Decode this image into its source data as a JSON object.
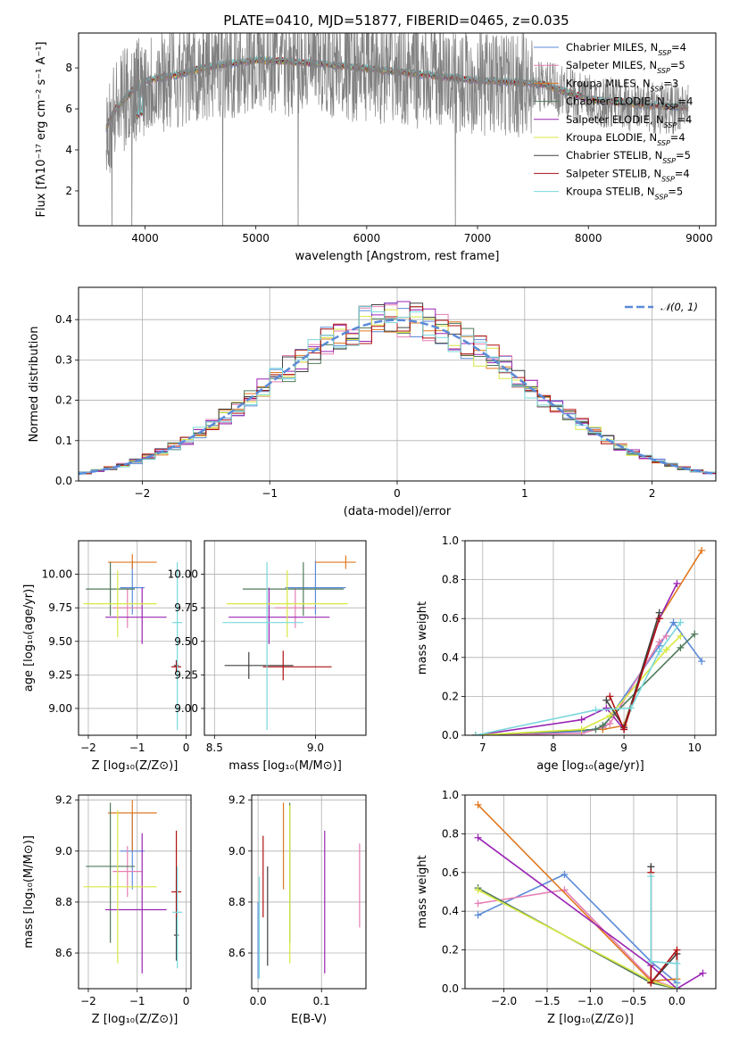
{
  "colors": {
    "Chabrier MILES": "#5b8ad8",
    "Salpeter MILES": "#e47fb4",
    "Kroupa MILES": "#e07820",
    "Chabrier ELODIE": "#4f7a5a",
    "Salpeter ELODIE": "#9a24b4",
    "Kroupa ELODIE": "#d8e840",
    "Chabrier STELIB": "#404040",
    "Salpeter STELIB": "#b01010",
    "Kroupa STELIB": "#7ad8dc",
    "gaussian": "#5b8ad8"
  },
  "chart_data": [
    {
      "id": "spectrum",
      "type": "line",
      "title": "PLATE=0410, MJD=51877, FIBERID=0465, z=0.035",
      "xlabel": "wavelength [Angstrom, rest frame]",
      "ylabel": "Flux [fλ10⁻¹⁷ erg cm⁻² s⁻¹ A⁻¹]",
      "xlim": [
        3400,
        9150
      ],
      "ylim": [
        0.3,
        9.7
      ],
      "xticks": [
        4000,
        5000,
        6000,
        7000,
        8000,
        9000
      ],
      "yticks": [
        2,
        4,
        6,
        8
      ],
      "legend_position": "top-right",
      "legend": [
        {
          "model": "Chabrier MILES",
          "label": "Chabrier MILES, N",
          "sub": "SSP",
          "suffix": "=4"
        },
        {
          "model": "Salpeter MILES",
          "label": "Salpeter MILES, N",
          "sub": "SSP",
          "suffix": "=5"
        },
        {
          "model": "Kroupa MILES",
          "label": "Kroupa MILES, N",
          "sub": "SSP",
          "suffix": "=3"
        },
        {
          "model": "Chabrier ELODIE",
          "label": "Chabrier ELODIE, N",
          "sub": "SSP",
          "suffix": "=4"
        },
        {
          "model": "Salpeter ELODIE",
          "label": "Salpeter ELODIE, N",
          "sub": "SSP",
          "suffix": "=4"
        },
        {
          "model": "Kroupa ELODIE",
          "label": "Kroupa ELODIE, N",
          "sub": "SSP",
          "suffix": "=4"
        },
        {
          "model": "Chabrier STELIB",
          "label": "Chabrier STELIB, N",
          "sub": "SSP",
          "suffix": "=5"
        },
        {
          "model": "Salpeter STELIB",
          "label": "Salpeter STELIB, N",
          "sub": "SSP",
          "suffix": "=4"
        },
        {
          "model": "Kroupa STELIB",
          "label": "Kroupa STELIB, N",
          "sub": "SSP",
          "suffix": "=5"
        }
      ],
      "data_color": "#808080",
      "continuum": [
        [
          3650,
          5.0
        ],
        [
          3720,
          5.8
        ],
        [
          3800,
          6.3
        ],
        [
          3950,
          7.2
        ],
        [
          4100,
          7.4
        ],
        [
          4300,
          7.6
        ],
        [
          4600,
          8.0
        ],
        [
          5000,
          8.3
        ],
        [
          5400,
          8.2
        ],
        [
          6000,
          7.9
        ],
        [
          6500,
          7.6
        ],
        [
          7000,
          7.3
        ],
        [
          7400,
          7.2
        ],
        [
          7600,
          7.1
        ],
        [
          8000,
          6.4
        ],
        [
          8500,
          6.1
        ],
        [
          8900,
          6.0
        ]
      ]
    },
    {
      "id": "residuals",
      "type": "histogram",
      "xlabel": "(data-model)/error",
      "ylabel": "Normed distribution",
      "xlim": [
        -2.5,
        2.5
      ],
      "ylim": [
        0,
        0.48
      ],
      "xticks": [
        -2,
        -1,
        0,
        1,
        2
      ],
      "yticks": [
        0.0,
        0.1,
        0.2,
        0.3,
        0.4
      ],
      "legend": "𝒩(0, 1)",
      "legend_position": "top-right",
      "gaussian": {
        "mean": 0,
        "sigma": 1
      },
      "bin_width": 0.1
    },
    {
      "id": "age_vs_Z",
      "type": "errorbar",
      "xlabel": "Z [log₁₀(Z/Z⊙)]",
      "ylabel": "age  [log₁₀(age/yr)]",
      "xlim": [
        -2.2,
        0.1
      ],
      "ylim": [
        8.8,
        10.25
      ],
      "xticks": [
        -2,
        -1,
        0
      ],
      "yticks": [
        9.0,
        9.25,
        9.5,
        9.75,
        10.0
      ],
      "points": [
        {
          "model": "Chabrier MILES",
          "x": -1.1,
          "xerr": [
            0.25,
            0.25
          ],
          "y": 9.9,
          "yerr": [
            0.2,
            0.2
          ]
        },
        {
          "model": "Salpeter MILES",
          "x": -1.2,
          "xerr": [
            0.3,
            0.3
          ],
          "y": 9.75,
          "yerr": [
            0.15,
            0.15
          ]
        },
        {
          "model": "Kroupa MILES",
          "x": -1.1,
          "xerr": [
            0.5,
            0.5
          ],
          "y": 10.09,
          "yerr": [
            0.05,
            0.06
          ]
        },
        {
          "model": "Chabrier ELODIE",
          "x": -1.55,
          "xerr": [
            0.5,
            0.5
          ],
          "y": 9.89,
          "yerr": [
            0.2,
            0.2
          ]
        },
        {
          "model": "Salpeter ELODIE",
          "x": -0.9,
          "xerr": [
            0.75,
            0.5
          ],
          "y": 9.68,
          "yerr": [
            0.2,
            0.22
          ]
        },
        {
          "model": "Kroupa ELODIE",
          "x": -1.4,
          "xerr": [
            0.7,
            0.8
          ],
          "y": 9.78,
          "yerr": [
            0.25,
            0.25
          ]
        },
        {
          "model": "Chabrier STELIB",
          "x": -0.2,
          "xerr": [
            0.05,
            0.05
          ],
          "y": 9.32,
          "yerr": [
            0.04,
            0.04
          ]
        },
        {
          "model": "Salpeter STELIB",
          "x": -0.2,
          "xerr": [
            0.1,
            0.1
          ],
          "y": 9.31,
          "yerr": [
            0.04,
            0.04
          ]
        },
        {
          "model": "Kroupa STELIB",
          "x": -0.18,
          "xerr": [
            0.1,
            0.1
          ],
          "y": 9.64,
          "yerr": [
            0.8,
            0.45
          ]
        }
      ]
    },
    {
      "id": "age_vs_mass",
      "type": "errorbar",
      "xlabel": "mass [log₁₀(M/M⊙)]",
      "ylabel": "",
      "xlim": [
        8.45,
        9.25
      ],
      "ylim": [
        8.8,
        10.25
      ],
      "xticks": [
        8.5,
        9.0
      ],
      "yticks": [
        9.0,
        9.25,
        9.5,
        9.75,
        10.0
      ],
      "points": [
        {
          "model": "Chabrier MILES",
          "x": 9.0,
          "xerr": [
            0.15,
            0.15
          ],
          "y": 9.9,
          "yerr": [
            0.2,
            0.2
          ]
        },
        {
          "model": "Salpeter MILES",
          "x": 8.9,
          "xerr": [
            0.1,
            0.1
          ],
          "y": 9.75,
          "yerr": [
            0.15,
            0.15
          ]
        },
        {
          "model": "Kroupa MILES",
          "x": 9.15,
          "xerr": [
            0.15,
            0.05
          ],
          "y": 10.09,
          "yerr": [
            0.05,
            0.05
          ]
        },
        {
          "model": "Chabrier ELODIE",
          "x": 8.94,
          "xerr": [
            0.3,
            0.2
          ],
          "y": 9.89,
          "yerr": [
            0.2,
            0.2
          ]
        },
        {
          "model": "Salpeter ELODIE",
          "x": 8.77,
          "xerr": [
            0.2,
            0.3
          ],
          "y": 9.68,
          "yerr": [
            0.2,
            0.22
          ]
        },
        {
          "model": "Kroupa ELODIE",
          "x": 8.86,
          "xerr": [
            0.3,
            0.3
          ],
          "y": 9.78,
          "yerr": [
            0.25,
            0.25
          ]
        },
        {
          "model": "Chabrier STELIB",
          "x": 8.67,
          "xerr": [
            0.12,
            0.22
          ],
          "y": 9.32,
          "yerr": [
            0.1,
            0.1
          ]
        },
        {
          "model": "Salpeter STELIB",
          "x": 8.84,
          "xerr": [
            0.1,
            0.24
          ],
          "y": 9.31,
          "yerr": [
            0.1,
            0.12
          ]
        },
        {
          "model": "Kroupa STELIB",
          "x": 8.76,
          "xerr": [
            0.22,
            0.18
          ],
          "y": 9.64,
          "yerr": [
            0.8,
            0.45
          ]
        }
      ]
    },
    {
      "id": "weight_vs_age",
      "type": "line",
      "xlabel": "age  [log₁₀(age/yr)]",
      "ylabel": "mass weight",
      "xlim": [
        6.75,
        10.3
      ],
      "ylim": [
        0,
        1.0
      ],
      "xticks": [
        7,
        8,
        9,
        10
      ],
      "yticks": [
        0.0,
        0.2,
        0.4,
        0.6,
        0.8,
        1.0
      ],
      "series": [
        {
          "model": "Chabrier MILES",
          "x": [
            6.9,
            8.4,
            8.7,
            9.5,
            9.7,
            10.1
          ],
          "y": [
            0.0,
            0.02,
            0.04,
            0.46,
            0.58,
            0.38
          ]
        },
        {
          "model": "Salpeter MILES",
          "x": [
            6.9,
            8.4,
            8.7,
            8.8,
            9.5,
            9.6
          ],
          "y": [
            0.0,
            0.01,
            0.04,
            0.06,
            0.48,
            0.51
          ]
        },
        {
          "model": "Kroupa MILES",
          "x": [
            8.7,
            9.0,
            9.5,
            10.1
          ],
          "y": [
            0.03,
            0.05,
            0.6,
            0.95
          ]
        },
        {
          "model": "Chabrier ELODIE",
          "x": [
            6.9,
            8.6,
            8.7,
            9.8,
            10.0
          ],
          "y": [
            0.0,
            0.03,
            0.05,
            0.45,
            0.52
          ]
        },
        {
          "model": "Salpeter ELODIE",
          "x": [
            6.9,
            8.4,
            8.75,
            9.0,
            9.5,
            9.75
          ],
          "y": [
            0.0,
            0.08,
            0.14,
            0.03,
            0.6,
            0.78
          ]
        },
        {
          "model": "Kroupa ELODIE",
          "x": [
            6.9,
            8.4,
            8.8,
            9.6,
            9.8
          ],
          "y": [
            0.0,
            0.03,
            0.1,
            0.44,
            0.51
          ]
        },
        {
          "model": "Chabrier STELIB",
          "x": [
            8.75,
            9.0,
            9.5
          ],
          "y": [
            0.18,
            0.04,
            0.63
          ]
        },
        {
          "model": "Salpeter STELIB",
          "x": [
            8.8,
            9.0,
            9.5
          ],
          "y": [
            0.2,
            0.03,
            0.6
          ]
        },
        {
          "model": "Kroupa STELIB",
          "x": [
            6.9,
            8.6,
            9.1,
            9.5,
            9.8
          ],
          "y": [
            0.0,
            0.13,
            0.14,
            0.43,
            0.58
          ]
        }
      ]
    },
    {
      "id": "mass_vs_Z",
      "type": "errorbar",
      "xlabel": "Z [log₁₀(Z/Z⊙)]",
      "ylabel": "mass [log₁₀(M/M⊙)]",
      "xlim": [
        -2.2,
        0.1
      ],
      "ylim": [
        8.46,
        9.22
      ],
      "xticks": [
        -2,
        -1,
        0
      ],
      "yticks": [
        8.6,
        8.8,
        9.0,
        9.2
      ],
      "points": [
        {
          "model": "Chabrier MILES",
          "x": -1.1,
          "xerr": [
            0.25,
            0.25
          ],
          "y": 9.0,
          "yerr": [
            0.15,
            0.15
          ]
        },
        {
          "model": "Salpeter MILES",
          "x": -1.2,
          "xerr": [
            0.3,
            0.3
          ],
          "y": 8.92,
          "yerr": [
            0.1,
            0.1
          ]
        },
        {
          "model": "Kroupa MILES",
          "x": -1.1,
          "xerr": [
            0.5,
            0.5
          ],
          "y": 9.15,
          "yerr": [
            0.15,
            0.05
          ]
        },
        {
          "model": "Chabrier ELODIE",
          "x": -1.55,
          "xerr": [
            0.5,
            0.5
          ],
          "y": 8.94,
          "yerr": [
            0.3,
            0.25
          ]
        },
        {
          "model": "Salpeter ELODIE",
          "x": -0.9,
          "xerr": [
            0.75,
            0.5
          ],
          "y": 8.77,
          "yerr": [
            0.25,
            0.3
          ]
        },
        {
          "model": "Kroupa ELODIE",
          "x": -1.4,
          "xerr": [
            0.7,
            0.8
          ],
          "y": 8.86,
          "yerr": [
            0.3,
            0.3
          ]
        },
        {
          "model": "Chabrier STELIB",
          "x": -0.2,
          "xerr": [
            0.05,
            0.05
          ],
          "y": 8.67,
          "yerr": [
            0.1,
            0.22
          ]
        },
        {
          "model": "Salpeter STELIB",
          "x": -0.2,
          "xerr": [
            0.1,
            0.1
          ],
          "y": 8.84,
          "yerr": [
            0.1,
            0.24
          ]
        },
        {
          "model": "Kroupa STELIB",
          "x": -0.18,
          "xerr": [
            0.1,
            0.1
          ],
          "y": 8.76,
          "yerr": [
            0.22,
            0.18
          ]
        }
      ]
    },
    {
      "id": "mass_vs_ebv",
      "type": "errorbar",
      "xlabel": "E(B-V)",
      "ylabel": "",
      "xlim": [
        -0.01,
        0.17
      ],
      "ylim": [
        8.46,
        9.22
      ],
      "xticks": [
        0.0,
        0.1
      ],
      "yticks": [
        8.6,
        8.8,
        9.0,
        9.2
      ],
      "points": [
        {
          "model": "Chabrier MILES",
          "x": 0.0,
          "y": 8.65,
          "yerr": [
            0.15,
            0.15
          ]
        },
        {
          "model": "Salpeter MILES",
          "x": 0.16,
          "y": 8.87,
          "yerr": [
            0.17,
            0.16
          ]
        },
        {
          "model": "Kroupa MILES",
          "x": 0.04,
          "y": 9.02,
          "yerr": [
            0.17,
            0.17
          ]
        },
        {
          "model": "Chabrier ELODIE",
          "x": 0.05,
          "y": 8.94,
          "yerr": [
            0.3,
            0.25
          ]
        },
        {
          "model": "Salpeter ELODIE",
          "x": 0.105,
          "y": 8.8,
          "yerr": [
            0.28,
            0.28
          ]
        },
        {
          "model": "Kroupa ELODIE",
          "x": 0.05,
          "y": 8.86,
          "yerr": [
            0.3,
            0.32
          ]
        },
        {
          "model": "Chabrier STELIB",
          "x": 0.015,
          "y": 8.75,
          "yerr": [
            0.2,
            0.19
          ]
        },
        {
          "model": "Salpeter STELIB",
          "x": 0.008,
          "y": 8.9,
          "yerr": [
            0.16,
            0.16
          ]
        },
        {
          "model": "Kroupa STELIB",
          "x": 0.002,
          "y": 8.7,
          "yerr": [
            0.2,
            0.2
          ]
        }
      ]
    },
    {
      "id": "weight_vs_Z",
      "type": "line",
      "xlabel": "Z [log₁₀(Z/Z⊙)]",
      "ylabel": "mass weight",
      "xlim": [
        -2.45,
        0.45
      ],
      "ylim": [
        0,
        1.0
      ],
      "xticks": [
        -2.0,
        -1.5,
        -1.0,
        -0.5,
        0.0
      ],
      "yticks": [
        0.0,
        0.2,
        0.4,
        0.6,
        0.8,
        1.0
      ],
      "series": [
        {
          "model": "Chabrier MILES",
          "x": [
            -2.3,
            -1.3,
            -0.3,
            0.0
          ],
          "y": [
            0.38,
            0.59,
            0.14,
            0.03
          ]
        },
        {
          "model": "Salpeter MILES",
          "x": [
            -2.3,
            -1.3,
            -0.3,
            0.0
          ],
          "y": [
            0.44,
            0.51,
            0.05,
            0.0
          ]
        },
        {
          "model": "Kroupa MILES",
          "x": [
            -2.3,
            -0.3,
            0.0
          ],
          "y": [
            0.95,
            0.04,
            0.05
          ]
        },
        {
          "model": "Chabrier ELODIE",
          "x": [
            -2.3,
            -0.3,
            0.0
          ],
          "y": [
            0.52,
            0.03,
            0.0
          ]
        },
        {
          "model": "Salpeter ELODIE",
          "x": [
            -2.3,
            -0.3,
            0.0,
            0.3
          ],
          "y": [
            0.78,
            0.12,
            0.0,
            0.08
          ]
        },
        {
          "model": "Kroupa ELODIE",
          "x": [
            -2.3,
            -0.3,
            0.0
          ],
          "y": [
            0.51,
            0.04,
            0.0
          ]
        },
        {
          "model": "Chabrier STELIB",
          "x": [
            -0.3,
            -0.3,
            0.0,
            0.0
          ],
          "y": [
            0.63,
            0.03,
            0.18,
            0.0
          ]
        },
        {
          "model": "Salpeter STELIB",
          "x": [
            -0.3,
            -0.3,
            0.0,
            0.0
          ],
          "y": [
            0.6,
            0.03,
            0.2,
            0.0
          ]
        },
        {
          "model": "Kroupa STELIB",
          "x": [
            -0.3,
            -0.3,
            0.0,
            0.0
          ],
          "y": [
            0.58,
            0.14,
            0.13,
            0.0
          ]
        }
      ]
    }
  ]
}
